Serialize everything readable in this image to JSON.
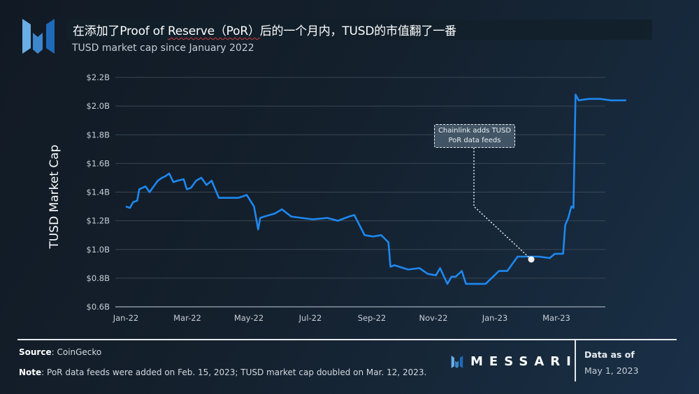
{
  "header": {
    "title_prefix": "在添加了Proof of ",
    "title_underlined": "Reserve（PoR）",
    "title_suffix": "后的一个月内，TUSD的市值翻了一番",
    "subtitle": "TUSD market cap since January 2022"
  },
  "logo": {
    "name": "messari-logo",
    "colors": [
      "#6aaee6",
      "#3d86cc",
      "#1f6ab8"
    ]
  },
  "annotation": {
    "line1": "Chainlink adds TUSD",
    "line2": "PoR data feeds"
  },
  "footer": {
    "source_label": "Source",
    "source_value": ": CoinGecko",
    "note_label": "Note",
    "note_value": ": PoR data feeds were added on Feb. 15, 2023; TUSD market cap doubled on Mar. 12, 2023.",
    "brand": "MESSARI",
    "data_as_of_label": "Data as of",
    "data_as_of_date": "May 1, 2023"
  },
  "colors": {
    "line": "#1e88f0",
    "grid": "#3a4654",
    "text": "#c8ced6",
    "marker": "#f2f4f6"
  },
  "chart_data": {
    "type": "line",
    "title": "在添加了Proof of Reserve（PoR）后的一个月内，TUSD的市值翻了一番",
    "subtitle": "TUSD market cap since January 2022",
    "xlabel": "",
    "ylabel": "TUSD Market Cap",
    "ylim": [
      0.6,
      2.2
    ],
    "y_unit": "USD billions",
    "y_ticks": [
      "$0.6B",
      "$0.8B",
      "$1.0B",
      "$1.2B",
      "$1.4B",
      "$1.6B",
      "$1.8B",
      "$2.0B",
      "$2.2B"
    ],
    "x_ticks": [
      "Jan-22",
      "Mar-22",
      "May-22",
      "Jul-22",
      "Sep-22",
      "Nov-22",
      "Jan-23",
      "Mar-23"
    ],
    "grid": true,
    "legend": null,
    "series": [
      {
        "name": "TUSD market cap",
        "x": [
          "2022-01-01",
          "2022-01-05",
          "2022-01-08",
          "2022-01-12",
          "2022-01-14",
          "2022-01-20",
          "2022-01-24",
          "2022-01-28",
          "2022-02-01",
          "2022-02-05",
          "2022-02-08",
          "2022-02-12",
          "2022-02-16",
          "2022-02-20",
          "2022-02-26",
          "2022-03-01",
          "2022-03-05",
          "2022-03-10",
          "2022-03-15",
          "2022-03-20",
          "2022-03-25",
          "2022-04-01",
          "2022-04-10",
          "2022-04-20",
          "2022-04-28",
          "2022-05-05",
          "2022-05-09",
          "2022-05-11",
          "2022-05-15",
          "2022-05-25",
          "2022-06-01",
          "2022-06-10",
          "2022-06-20",
          "2022-07-01",
          "2022-07-15",
          "2022-07-25",
          "2022-08-05",
          "2022-08-10",
          "2022-08-20",
          "2022-08-28",
          "2022-09-05",
          "2022-09-12",
          "2022-09-14",
          "2022-09-18",
          "2022-10-01",
          "2022-10-12",
          "2022-10-20",
          "2022-10-28",
          "2022-11-01",
          "2022-11-08",
          "2022-11-12",
          "2022-11-16",
          "2022-11-22",
          "2022-11-26",
          "2022-12-01",
          "2022-12-15",
          "2022-12-28",
          "2023-01-05",
          "2023-01-15",
          "2023-01-25",
          "2023-02-05",
          "2023-02-15",
          "2023-02-20",
          "2023-02-28",
          "2023-03-02",
          "2023-03-05",
          "2023-03-08",
          "2023-03-10",
          "2023-03-12",
          "2023-03-15",
          "2023-03-25",
          "2023-04-05",
          "2023-04-15",
          "2023-04-30"
        ],
        "values": [
          1.3,
          1.29,
          1.33,
          1.34,
          1.42,
          1.44,
          1.4,
          1.44,
          1.48,
          1.5,
          1.51,
          1.53,
          1.47,
          1.48,
          1.49,
          1.42,
          1.43,
          1.48,
          1.5,
          1.45,
          1.48,
          1.36,
          1.36,
          1.36,
          1.38,
          1.3,
          1.14,
          1.22,
          1.23,
          1.25,
          1.28,
          1.23,
          1.22,
          1.21,
          1.22,
          1.2,
          1.23,
          1.24,
          1.1,
          1.09,
          1.1,
          1.05,
          0.88,
          0.89,
          0.86,
          0.87,
          0.83,
          0.82,
          0.87,
          0.76,
          0.81,
          0.81,
          0.85,
          0.76,
          0.76,
          0.76,
          0.85,
          0.85,
          0.95,
          0.95,
          0.95,
          0.94,
          0.97,
          0.97,
          1.17,
          1.22,
          1.3,
          1.29,
          2.08,
          2.04,
          2.05,
          2.05,
          2.04,
          2.04
        ]
      }
    ],
    "annotations": [
      {
        "text": "Chainlink adds TUSD PoR data feeds",
        "x": "2023-02-15",
        "y": 0.94
      }
    ]
  }
}
